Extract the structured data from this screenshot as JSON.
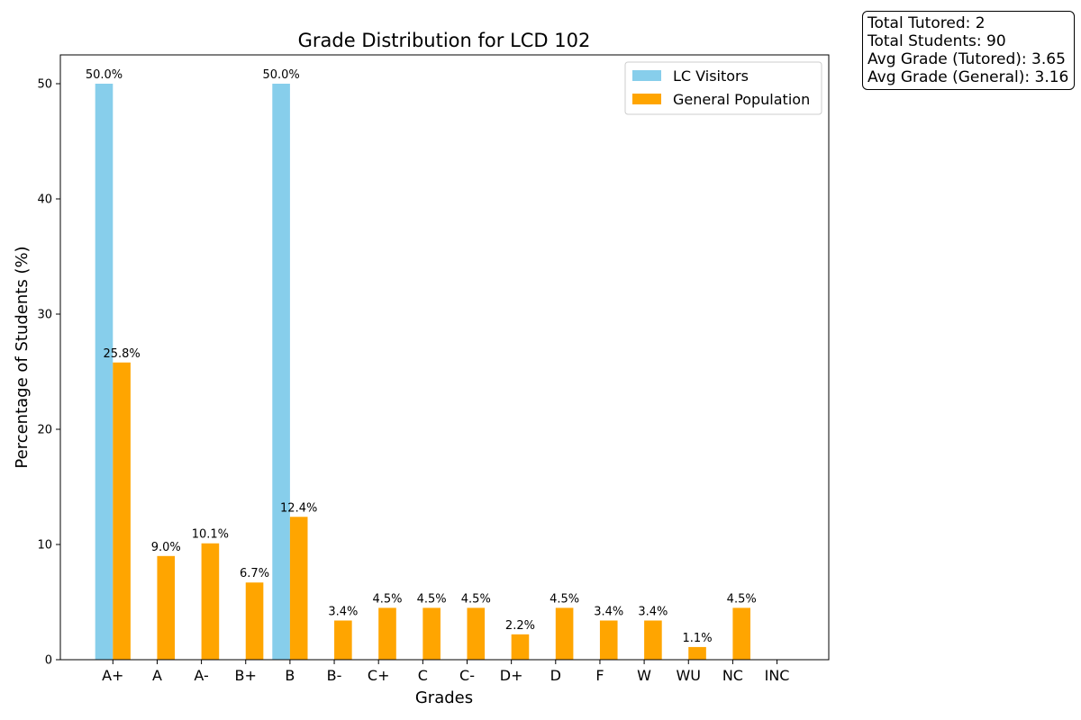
{
  "chart_data": {
    "type": "bar",
    "title": "Grade Distribution for LCD 102",
    "xlabel": "Grades",
    "ylabel": "Percentage of Students (%)",
    "categories": [
      "A+",
      "A",
      "A-",
      "B+",
      "B",
      "B-",
      "C+",
      "C",
      "C-",
      "D+",
      "D",
      "F",
      "W",
      "WU",
      "NC",
      "INC"
    ],
    "ylim": [
      0,
      52.5
    ],
    "yticks": [
      0,
      10,
      20,
      30,
      40,
      50
    ],
    "grid": false,
    "legend_position": "top-right",
    "series": [
      {
        "name": "LC Visitors",
        "color": "#87ceeb",
        "values": [
          50.0,
          0,
          0,
          0,
          50.0,
          0,
          0,
          0,
          0,
          0,
          0,
          0,
          0,
          0,
          0,
          0
        ],
        "labels": [
          "50.0%",
          "",
          "",
          "",
          "50.0%",
          "",
          "",
          "",
          "",
          "",
          "",
          "",
          "",
          "",
          "",
          ""
        ]
      },
      {
        "name": "General Population",
        "color": "#ffa500",
        "values": [
          25.8,
          9.0,
          10.1,
          6.7,
          12.4,
          3.4,
          4.5,
          4.5,
          4.5,
          2.2,
          4.5,
          3.4,
          3.4,
          1.1,
          4.5,
          0
        ],
        "labels": [
          "25.8%",
          "9.0%",
          "10.1%",
          "6.7%",
          "12.4%",
          "3.4%",
          "4.5%",
          "4.5%",
          "4.5%",
          "2.2%",
          "4.5%",
          "3.4%",
          "3.4%",
          "1.1%",
          "4.5%",
          ""
        ]
      }
    ]
  },
  "stats": {
    "total_tutored": "Total Tutored: 2",
    "total_students": "Total Students: 90",
    "avg_tutored": "Avg Grade (Tutored): 3.65",
    "avg_general": "Avg Grade (General): 3.16"
  }
}
